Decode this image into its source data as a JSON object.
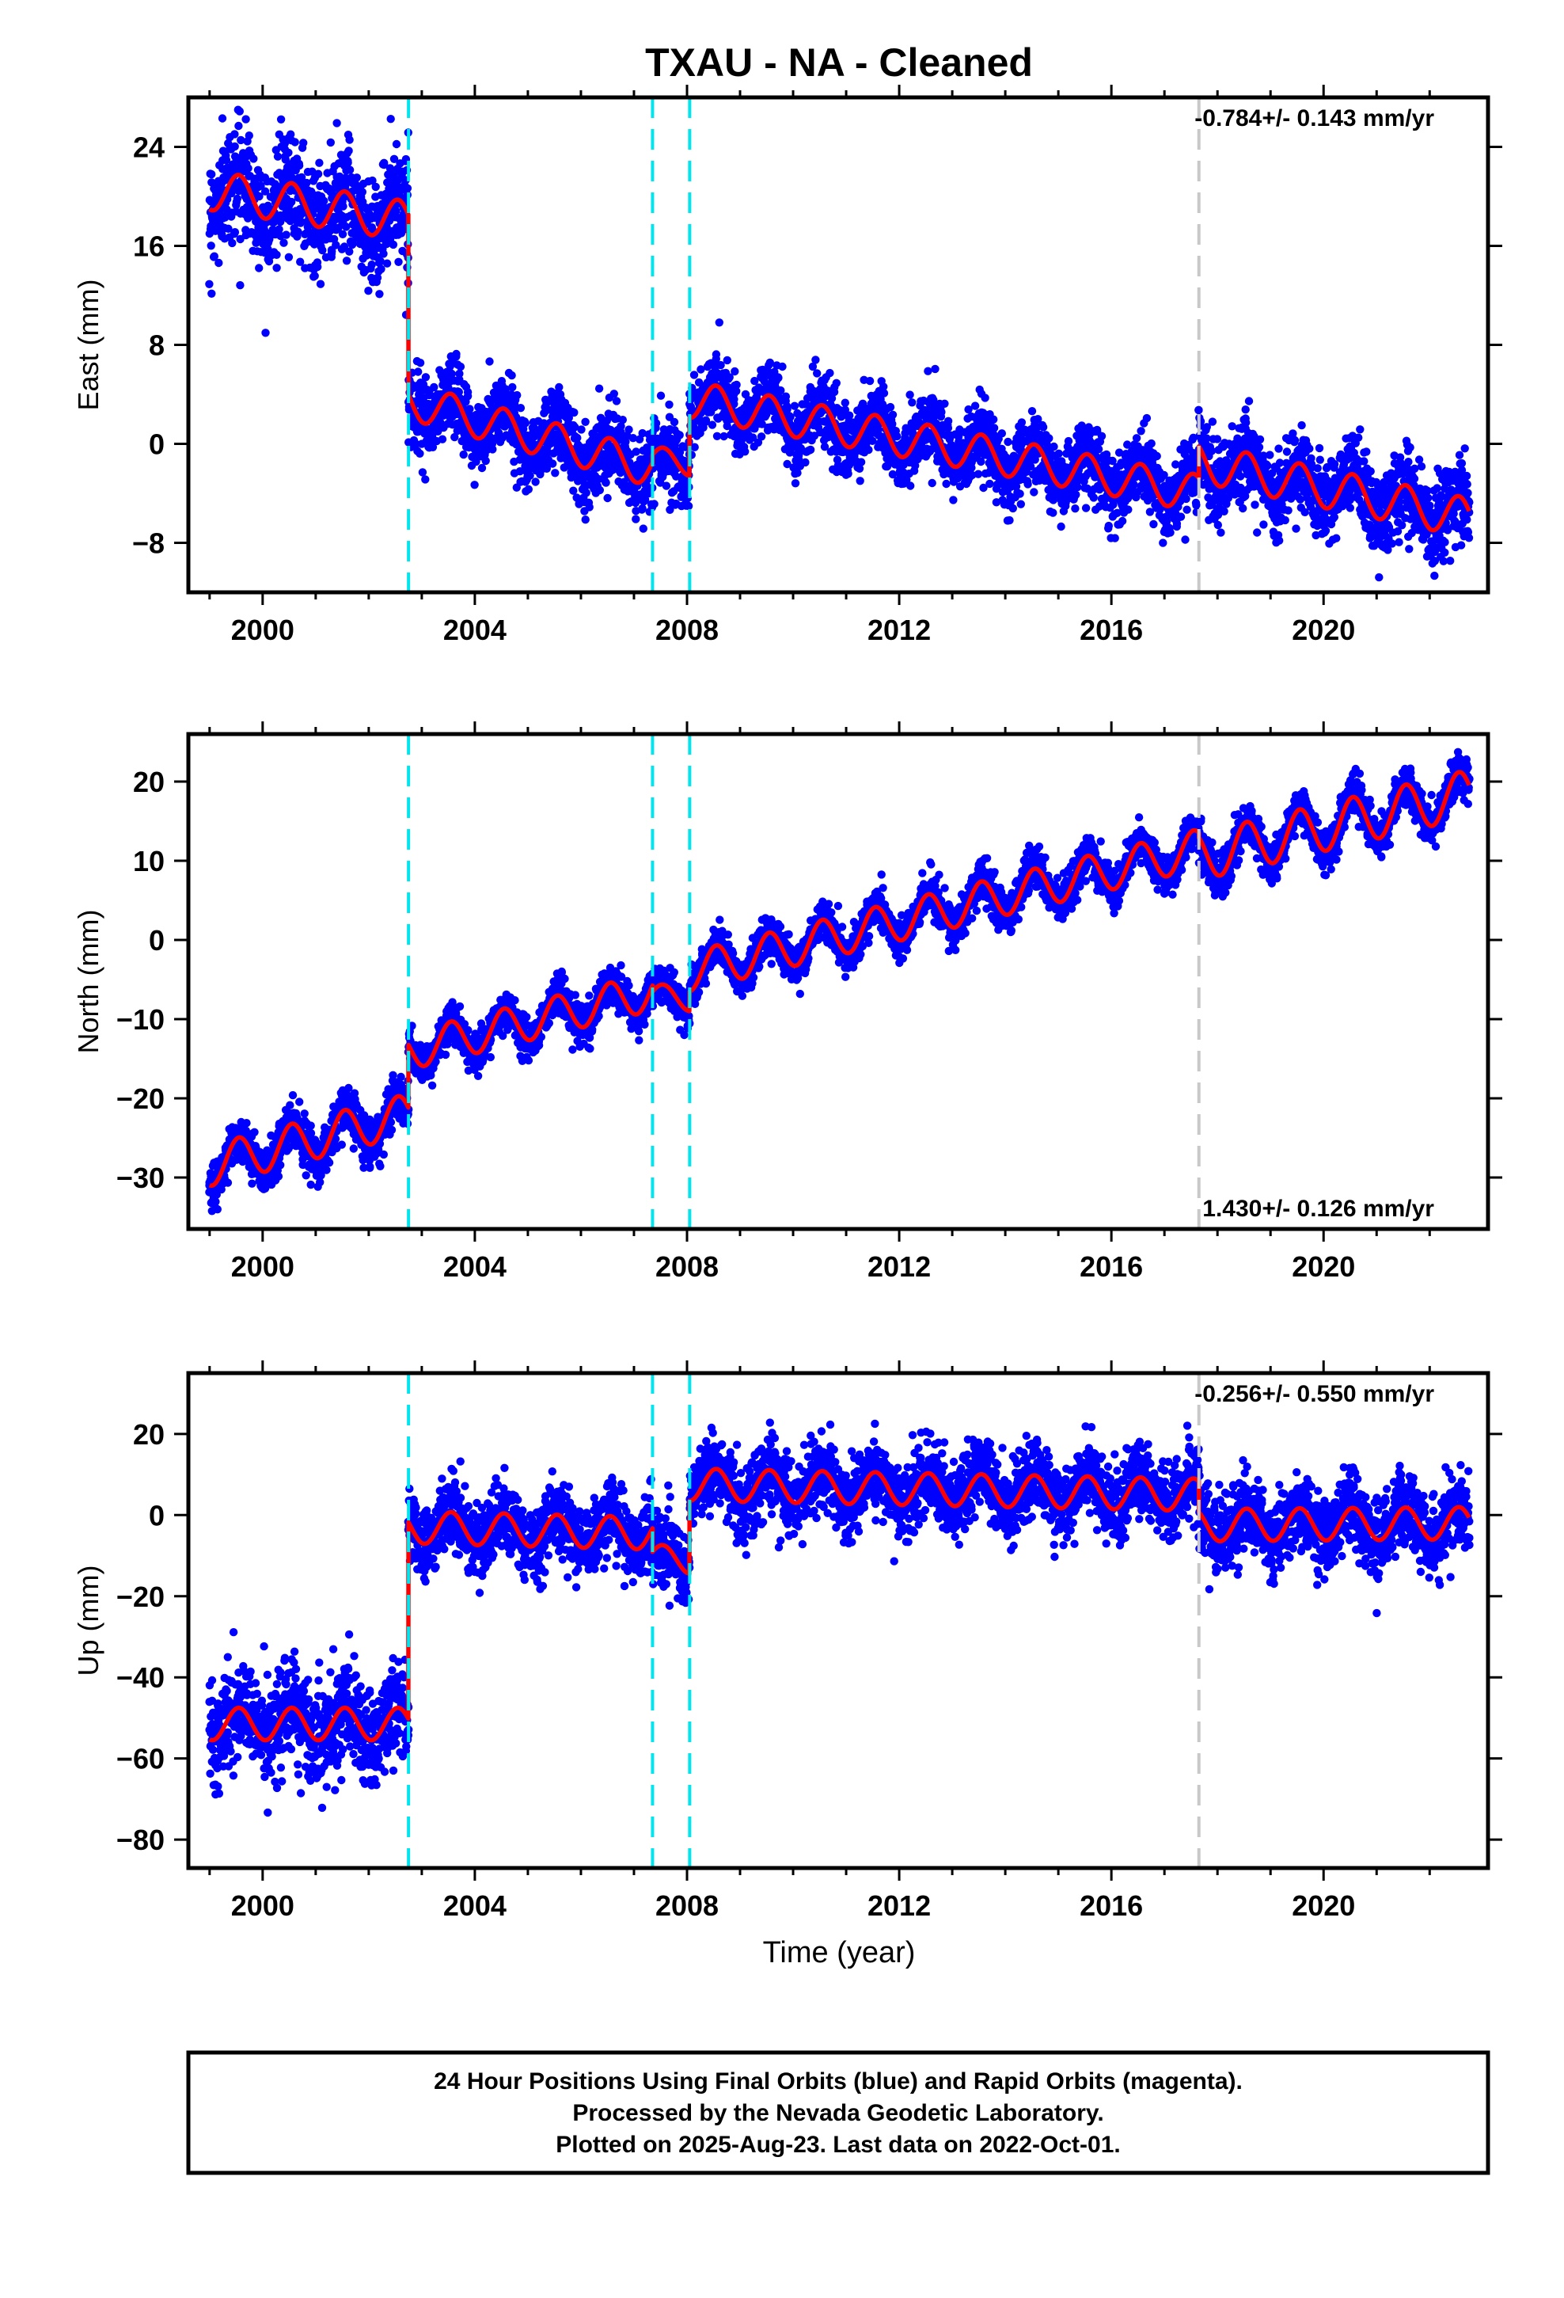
{
  "chart_data": [
    {
      "type": "scatter",
      "title": "TXAU  - NA - Cleaned",
      "ylabel": "East (mm)",
      "xlabel": "",
      "xlim": [
        1998.6,
        2023.1
      ],
      "ylim": [
        -12,
        28
      ],
      "xticks": [
        2000,
        2004,
        2008,
        2012,
        2016,
        2020
      ],
      "yticks": [
        -8,
        0,
        8,
        16,
        24
      ],
      "rate_label": "-0.784+/- 0.143 mm/yr",
      "rate_position": "top-right",
      "scatter_color": "#0000ff",
      "model_color": "#ff0000",
      "events": [
        {
          "x": 2002.75,
          "color": "#00e5ee",
          "style": "dashed"
        },
        {
          "x": 2007.35,
          "color": "#00e5ee",
          "style": "dashed"
        },
        {
          "x": 2008.05,
          "color": "#00e5ee",
          "style": "dashed"
        },
        {
          "x": 2017.65,
          "color": "#c8c8c8",
          "style": "dashed"
        }
      ],
      "segments": [
        {
          "x": [
            1999.0,
            2002.75
          ],
          "y": [
            20.5,
            18.0
          ],
          "amp": 1.6,
          "scatter": 2.2
        },
        {
          "x": [
            2002.75,
            2007.35
          ],
          "y": [
            3.5,
            -2.0
          ],
          "amp": 1.5,
          "scatter": 1.5
        },
        {
          "x": [
            2007.35,
            2008.05
          ],
          "y": [
            -1.2,
            -1.6
          ],
          "amp": 1.0,
          "scatter": 1.6
        },
        {
          "x": [
            2008.05,
            2017.65
          ],
          "y": [
            3.6,
            -4.0
          ],
          "amp": 1.5,
          "scatter": 1.4
        },
        {
          "x": [
            2017.65,
            2022.75
          ],
          "y": [
            -1.5,
            -6.0
          ],
          "amp": 1.6,
          "scatter": 1.6
        }
      ]
    },
    {
      "type": "scatter",
      "ylabel": "North (mm)",
      "xlabel": "",
      "xlim": [
        1998.6,
        2023.1
      ],
      "ylim": [
        -36.5,
        26
      ],
      "xticks": [
        2000,
        2004,
        2008,
        2012,
        2016,
        2020
      ],
      "yticks": [
        -30,
        -20,
        -10,
        0,
        10,
        20
      ],
      "rate_label": "1.430+/- 0.126 mm/yr",
      "rate_position": "bottom-right",
      "scatter_color": "#0000ff",
      "model_color": "#ff0000",
      "events": [
        {
          "x": 2002.75,
          "color": "#00e5ee",
          "style": "dashed"
        },
        {
          "x": 2007.35,
          "color": "#00e5ee",
          "style": "dashed"
        },
        {
          "x": 2008.05,
          "color": "#00e5ee",
          "style": "dashed"
        },
        {
          "x": 2017.65,
          "color": "#c8c8c8",
          "style": "dashed"
        }
      ],
      "segments": [
        {
          "x": [
            1999.0,
            2002.75
          ],
          "y": [
            -28.5,
            -22.0
          ],
          "amp": 2.6,
          "scatter": 1.4
        },
        {
          "x": [
            2002.75,
            2007.35
          ],
          "y": [
            -14.0,
            -6.5
          ],
          "amp": 2.4,
          "scatter": 1.2
        },
        {
          "x": [
            2007.35,
            2008.05
          ],
          "y": [
            -7.0,
            -7.5
          ],
          "amp": 1.5,
          "scatter": 1.2
        },
        {
          "x": [
            2008.05,
            2017.65
          ],
          "y": [
            -4.0,
            11.5
          ],
          "amp": 2.5,
          "scatter": 1.2
        },
        {
          "x": [
            2017.65,
            2022.75
          ],
          "y": [
            10.5,
            18.5
          ],
          "amp": 3.0,
          "scatter": 1.3
        }
      ]
    },
    {
      "type": "scatter",
      "ylabel": "Up (mm)",
      "xlabel": "Time (year)",
      "xlim": [
        1998.6,
        2023.1
      ],
      "ylim": [
        -87,
        35
      ],
      "xticks": [
        2000,
        2004,
        2008,
        2012,
        2016,
        2020
      ],
      "yticks": [
        -80,
        -60,
        -40,
        -20,
        0,
        20
      ],
      "rate_label": "-0.256+/- 0.550 mm/yr",
      "rate_position": "top-right",
      "scatter_color": "#0000ff",
      "model_color": "#ff0000",
      "events": [
        {
          "x": 2002.75,
          "color": "#00e5ee",
          "style": "dashed"
        },
        {
          "x": 2007.35,
          "color": "#00e5ee",
          "style": "dashed"
        },
        {
          "x": 2008.05,
          "color": "#00e5ee",
          "style": "dashed"
        },
        {
          "x": 2017.65,
          "color": "#c8c8c8",
          "style": "dashed"
        }
      ],
      "segments": [
        {
          "x": [
            1999.0,
            2002.75
          ],
          "y": [
            -51.5,
            -51.5
          ],
          "amp": 4.0,
          "scatter": 6.0
        },
        {
          "x": [
            2002.75,
            2007.35
          ],
          "y": [
            -3.0,
            -4.5
          ],
          "amp": 4.0,
          "scatter": 4.5
        },
        {
          "x": [
            2007.35,
            2008.05
          ],
          "y": [
            -10.0,
            -11.5
          ],
          "amp": 3.0,
          "scatter": 4.5
        },
        {
          "x": [
            2008.05,
            2017.65
          ],
          "y": [
            7.5,
            5.0
          ],
          "amp": 4.0,
          "scatter": 4.5
        },
        {
          "x": [
            2017.65,
            2022.75
          ],
          "y": [
            -2.5,
            -2.0
          ],
          "amp": 4.0,
          "scatter": 5.0
        }
      ]
    }
  ],
  "footer": {
    "line1": "24 Hour Positions Using Final Orbits (blue) and Rapid Orbits (magenta).",
    "line2": "Processed by the Nevada Geodetic Laboratory.",
    "line3": "Plotted on 2025-Aug-23. Last data on 2022-Oct-01."
  }
}
